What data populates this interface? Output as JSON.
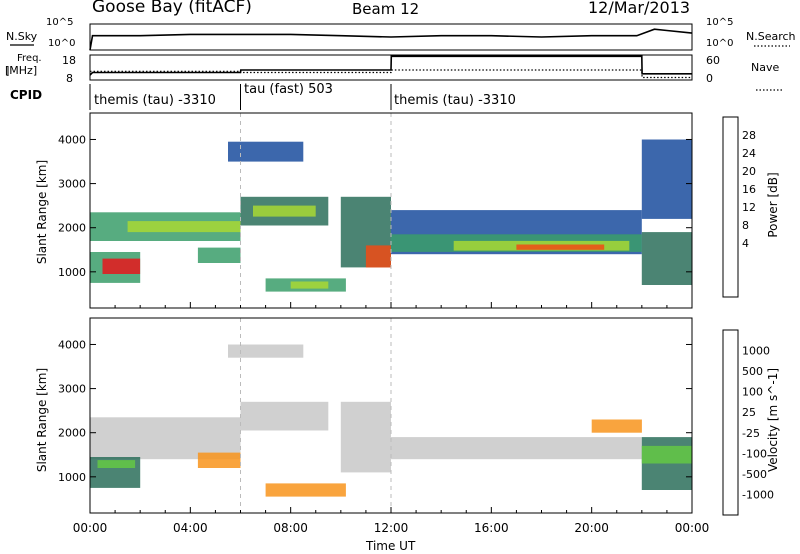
{
  "header": {
    "station": "Goose Bay (fitACF)",
    "beam": "Beam 12",
    "date": "12/Mar/2013"
  },
  "top_panels": {
    "nsky_label": "N.Sky",
    "nsky_ticks": [
      "10^5",
      "10^0"
    ],
    "nsearch_label": "N.Search",
    "nsearch_ticks": [
      "10^5",
      "10^0"
    ],
    "freq_label": "Freq.",
    "freq_unit": "[MHz]",
    "freq_ticks": [
      "18",
      "8"
    ],
    "nave_label": "Nave",
    "nave_ticks": [
      "60",
      "0"
    ],
    "cpid_label": "CPID"
  },
  "cpid_segments": [
    {
      "label": "themis (tau) -3310",
      "start_h": 0,
      "end_h": 6
    },
    {
      "label": "tau (fast) 503",
      "start_h": 6,
      "end_h": 12
    },
    {
      "label": "themis (tau) -3310",
      "start_h": 12,
      "end_h": 24
    }
  ],
  "power_colorbar": {
    "title": "Power [dB]",
    "ticks": [
      "28",
      "24",
      "20",
      "16",
      "12",
      "8",
      "4"
    ],
    "colors": [
      "#e8161c",
      "#f04a14",
      "#f8941c",
      "#f8c81c",
      "#a8d834",
      "#64c844",
      "#3a9e6a",
      "#2c6e5a",
      "#1a4c9e",
      "#1a30d8"
    ]
  },
  "velocity_colorbar": {
    "title": "Velocity [m s^-1]",
    "ticks": [
      "1000",
      "500",
      "100",
      "25",
      "-25",
      "-100",
      "-500",
      "-1000"
    ],
    "colors": [
      "#1a30d8",
      "#1a4c9e",
      "#2c6e5a",
      "#64c844",
      "#c8c8c8",
      "#f8c81c",
      "#f8941c",
      "#f04a14",
      "#e8161c"
    ]
  },
  "chart_data": {
    "type": "heatmap",
    "xlabel": "Time UT",
    "x_ticks": [
      "00:00",
      "04:00",
      "08:00",
      "12:00",
      "16:00",
      "20:00",
      "00:00"
    ],
    "x_range_hours": [
      0,
      24
    ],
    "ylabel": "Slant Range [km]",
    "y_ticks": [
      "4000",
      "3000",
      "2000",
      "1000"
    ],
    "y_range_km": [
      180,
      4600
    ],
    "panels": [
      {
        "name": "Power",
        "bands": [
          {
            "t0": 0.0,
            "t1": 6.0,
            "r0": 1700,
            "r1": 2350,
            "color": "#3a9e6a"
          },
          {
            "t0": 1.5,
            "t1": 6.0,
            "r0": 1900,
            "r1": 2150,
            "color": "#a8d834"
          },
          {
            "t0": 0.0,
            "t1": 2.0,
            "r0": 750,
            "r1": 1450,
            "color": "#3a9e6a"
          },
          {
            "t0": 0.5,
            "t1": 2.0,
            "r0": 950,
            "r1": 1300,
            "color": "#e8161c"
          },
          {
            "t0": 4.3,
            "t1": 6.0,
            "r0": 1200,
            "r1": 1550,
            "color": "#3a9e6a"
          },
          {
            "t0": 6.0,
            "t1": 9.5,
            "r0": 2050,
            "r1": 2700,
            "color": "#2c6e5a"
          },
          {
            "t0": 6.5,
            "t1": 9.0,
            "r0": 2250,
            "r1": 2500,
            "color": "#a8d834"
          },
          {
            "t0": 7.0,
            "t1": 10.2,
            "r0": 550,
            "r1": 850,
            "color": "#3a9e6a"
          },
          {
            "t0": 8.0,
            "t1": 9.5,
            "r0": 620,
            "r1": 780,
            "color": "#a8d834"
          },
          {
            "t0": 5.5,
            "t1": 8.5,
            "r0": 3500,
            "r1": 3950,
            "color": "#1a4c9e"
          },
          {
            "t0": 10.0,
            "t1": 12.0,
            "r0": 1100,
            "r1": 2700,
            "color": "#2c6e5a"
          },
          {
            "t0": 11.0,
            "t1": 12.0,
            "r0": 1100,
            "r1": 1600,
            "color": "#f04a14"
          },
          {
            "t0": 12.0,
            "t1": 22.0,
            "r0": 1400,
            "r1": 2400,
            "color": "#1a4c9e"
          },
          {
            "t0": 12.0,
            "t1": 22.0,
            "r0": 1450,
            "r1": 1850,
            "color": "#3a9e6a"
          },
          {
            "t0": 14.5,
            "t1": 21.5,
            "r0": 1480,
            "r1": 1700,
            "color": "#a8d834"
          },
          {
            "t0": 17.0,
            "t1": 20.5,
            "r0": 1500,
            "r1": 1620,
            "color": "#f04a14"
          },
          {
            "t0": 22.0,
            "t1": 24.0,
            "r0": 700,
            "r1": 1900,
            "color": "#2c6e5a"
          },
          {
            "t0": 22.0,
            "t1": 24.0,
            "r0": 2200,
            "r1": 4000,
            "color": "#1a4c9e"
          }
        ]
      },
      {
        "name": "Velocity",
        "bands": [
          {
            "t0": 0.0,
            "t1": 6.0,
            "r0": 1400,
            "r1": 2350,
            "color": "#c8c8c8"
          },
          {
            "t0": 0.0,
            "t1": 2.0,
            "r0": 750,
            "r1": 1450,
            "color": "#2c6e5a"
          },
          {
            "t0": 0.3,
            "t1": 1.8,
            "r0": 1200,
            "r1": 1380,
            "color": "#64c844"
          },
          {
            "t0": 4.3,
            "t1": 6.0,
            "r0": 1200,
            "r1": 1550,
            "color": "#f8941c"
          },
          {
            "t0": 6.0,
            "t1": 9.5,
            "r0": 2050,
            "r1": 2700,
            "color": "#c8c8c8"
          },
          {
            "t0": 5.5,
            "t1": 8.5,
            "r0": 3700,
            "r1": 4000,
            "color": "#c8c8c8"
          },
          {
            "t0": 7.0,
            "t1": 10.2,
            "r0": 550,
            "r1": 850,
            "color": "#f8941c"
          },
          {
            "t0": 10.0,
            "t1": 12.0,
            "r0": 1100,
            "r1": 2700,
            "color": "#c8c8c8"
          },
          {
            "t0": 12.0,
            "t1": 22.0,
            "r0": 1400,
            "r1": 1900,
            "color": "#c8c8c8"
          },
          {
            "t0": 20.0,
            "t1": 22.0,
            "r0": 2000,
            "r1": 2300,
            "color": "#f8941c"
          },
          {
            "t0": 22.0,
            "t1": 24.0,
            "r0": 700,
            "r1": 1900,
            "color": "#2c6e5a"
          },
          {
            "t0": 22.0,
            "t1": 24.0,
            "r0": 1300,
            "r1": 1700,
            "color": "#64c844"
          }
        ]
      }
    ],
    "ground_scatter_color": "#c8c8c8",
    "nsky_series": {
      "x_hours": [
        0,
        0.1,
        2,
        4,
        6,
        8,
        10,
        12,
        14,
        16,
        18,
        20,
        21.8,
        22.5,
        23,
        24
      ],
      "y_frac": [
        0.0,
        0.55,
        0.55,
        0.6,
        0.6,
        0.6,
        0.55,
        0.5,
        0.55,
        0.55,
        0.5,
        0.55,
        0.55,
        0.8,
        0.75,
        0.65
      ]
    },
    "freq_series": {
      "x_hours": [
        0,
        0.1,
        6,
        6.01,
        12,
        12.01,
        22,
        22.01,
        24
      ],
      "y_frac": [
        0.2,
        0.3,
        0.3,
        0.4,
        0.4,
        0.95,
        0.95,
        0.25,
        0.25
      ]
    },
    "nave_series": {
      "x_hours": [
        0,
        6,
        6.01,
        12,
        12.01,
        22,
        22.01,
        24
      ],
      "y_frac": [
        0.35,
        0.35,
        0.3,
        0.3,
        0.4,
        0.4,
        0.1,
        0.1
      ]
    }
  }
}
